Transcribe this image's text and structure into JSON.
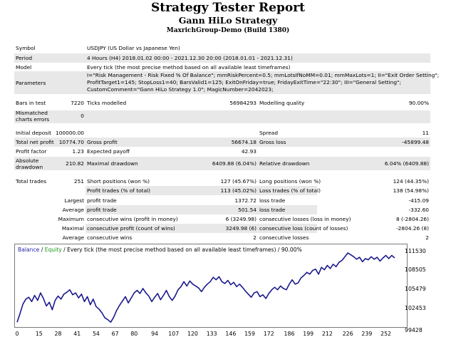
{
  "header": {
    "title": "Strategy Tester Report",
    "strategy": "Gann HiLo Strategy",
    "account": "MaxrichGroup-Demo (Build 1380)"
  },
  "report": {
    "symbol_label": "Symbol",
    "symbol": "USDJPY (US Dollar vs Japanese Yen)",
    "period_label": "Period",
    "period": "4 Hours (H4) 2018.01.02 00:00 - 2021.12.30 20:00 (2018.01.01 - 2021.12.31)",
    "model_label": "Model",
    "model": "Every tick (the most precise method based on all available least timeframes)",
    "parameters_label": "Parameters",
    "parameters_line1": "I=\"Risk Management - Risk Fixed % Of Balance\"; mmRiskPercent=0.5; mmLotsIfNoMM=0.01; mmMaxLots=1; II=\"Exit Order Setting\";",
    "parameters_line2": "ProfitTarget1=145; StopLoss1=40; BarsValid1=125; ExitOnFriday=true; FridayExitTime=\"22:30\"; III=\"General Setting\";",
    "parameters_line3": "CustomComment=\"Gann HiLo Strategy 1.0\"; MagicNumber=2042023;",
    "bars_label": "Bars in test",
    "bars": "7220",
    "ticks_label": "Ticks modelled",
    "ticks": "56984293",
    "quality_label": "Modelling quality",
    "quality": "90.00%",
    "mismatched_label_1": "Mismatched",
    "mismatched_label_2": "charts errors",
    "mismatched": "0",
    "initial_deposit_label": "Initial deposit",
    "initial_deposit": "100000.00",
    "spread_label": "Spread",
    "spread": "11",
    "net_profit_label": "Total net profit",
    "net_profit": "10774.70",
    "gross_profit_label": "Gross profit",
    "gross_profit": "56674.18",
    "gross_loss_label": "Gross loss",
    "gross_loss": "-45899.48",
    "profit_factor_label": "Profit factor",
    "profit_factor": "1.23",
    "expected_payoff_label": "Expected payoff",
    "expected_payoff": "42.93",
    "absolute_dd_label_1": "Absolute",
    "absolute_dd_label_2": "drawdown",
    "absolute_dd": "210.82",
    "maximal_dd_label": "Maximal drawdown",
    "maximal_dd": "6409.88 (6.04%)",
    "relative_dd_label": "Relative drawdown",
    "relative_dd": "6.04% (6409.88)",
    "total_trades_label": "Total trades",
    "total_trades": "251",
    "short_label": "Short positions (won %)",
    "short": "127 (45.67%)",
    "long_label": "Long positions (won %)",
    "long": "124 (44.35%)",
    "profit_trades_label": "Profit trades (% of total)",
    "profit_trades": "113 (45.02%)",
    "loss_trades_label": "Loss trades (% of total)",
    "loss_trades": "138 (54.98%)",
    "largest_label": "Largest",
    "largest_profit_label": "profit trade",
    "largest_profit": "1372.72",
    "largest_loss_label": "loss trade",
    "largest_loss": "-415.09",
    "average_label": "Average",
    "average_profit_label": "profit trade",
    "average_profit": "501.54",
    "average_loss_label": "loss trade",
    "average_loss": "-332.60",
    "maximum_label": "Maximum",
    "max_cons_wins_label": "consecutive wins (profit in money)",
    "max_cons_wins": "6 (3249.98)",
    "max_cons_losses_label": "consecutive losses (loss in money)",
    "max_cons_losses": "8 (-2804.26)",
    "maximal_label": "Maximal",
    "maximal_cons_profit_label": "consecutive profit (count of wins)",
    "maximal_cons_profit": "3249.98 (6)",
    "maximal_cons_loss_label": "consecutive loss (count of losses)",
    "maximal_cons_loss": "-2804.26 (8)",
    "average2_label": "Average",
    "avg_cons_wins_label": "consecutive wins",
    "avg_cons_wins": "2",
    "avg_cons_losses_label": "consecutive losses",
    "avg_cons_losses": "2"
  },
  "chart": {
    "caption_balance": "Balance",
    "caption_sep": " / ",
    "caption_equity": "Equity",
    "caption_rest": " / Every tick (the most precise method based on all available least timeframes) / 90.00%",
    "balance_color": "#1a1a8c",
    "equity_color": "#1a9a1a"
  },
  "chart_data": {
    "type": "line",
    "ylim": [
      99428,
      111530
    ],
    "xlim": [
      0,
      260
    ],
    "yticks": [
      "111530",
      "108505",
      "105479",
      "102453",
      "99428"
    ],
    "xticks": [
      "0",
      "15",
      "28",
      "41",
      "54",
      "67",
      "80",
      "94",
      "107",
      "120",
      "133",
      "146",
      "159",
      "172",
      "186",
      "199",
      "212",
      "226",
      "239",
      "252"
    ],
    "series": [
      {
        "name": "Balance",
        "x": [
          0,
          2,
          4,
          6,
          8,
          10,
          12,
          14,
          16,
          18,
          20,
          22,
          24,
          26,
          28,
          30,
          32,
          34,
          36,
          38,
          40,
          42,
          44,
          46,
          48,
          50,
          52,
          54,
          56,
          58,
          60,
          62,
          64,
          66,
          68,
          70,
          72,
          74,
          76,
          78,
          80,
          82,
          84,
          86,
          88,
          90,
          92,
          94,
          96,
          98,
          100,
          102,
          104,
          106,
          108,
          110,
          112,
          114,
          116,
          118,
          120,
          122,
          124,
          126,
          128,
          130,
          132,
          134,
          136,
          138,
          140,
          142,
          144,
          146,
          148,
          150,
          152,
          154,
          156,
          158,
          160,
          162,
          164,
          166,
          168,
          170,
          172,
          174,
          176,
          178,
          180,
          182,
          184,
          186,
          188,
          190,
          192,
          194,
          196,
          198,
          200,
          202,
          204,
          206,
          208,
          210,
          212,
          214,
          216,
          218,
          220,
          222,
          224,
          226,
          228,
          230,
          232,
          234,
          236,
          238,
          240,
          242,
          244,
          246,
          248,
          250,
          252,
          254,
          256,
          258
        ],
        "values": [
          100210,
          101600,
          103100,
          103900,
          104200,
          103500,
          104500,
          103700,
          104900,
          104000,
          102800,
          103400,
          102200,
          103700,
          104400,
          103900,
          104700,
          105000,
          105400,
          104600,
          104900,
          104100,
          104700,
          103500,
          104300,
          103000,
          103900,
          102700,
          102300,
          101700,
          100900,
          100600,
          100200,
          101000,
          102100,
          102900,
          103600,
          104300,
          103300,
          104100,
          104900,
          105300,
          104800,
          105600,
          104900,
          104400,
          103500,
          104200,
          104800,
          103800,
          104500,
          105300,
          104300,
          103700,
          104400,
          105400,
          105900,
          106700,
          106000,
          106800,
          106300,
          106000,
          105700,
          105100,
          105800,
          106300,
          106700,
          107400,
          107000,
          107500,
          106700,
          106400,
          106900,
          106200,
          106600,
          105900,
          106300,
          105800,
          105200,
          104700,
          104200,
          104900,
          105100,
          104300,
          104600,
          104000,
          104800,
          105400,
          105800,
          105400,
          106000,
          105600,
          105400,
          106300,
          107000,
          106300,
          106500,
          107300,
          107700,
          108200,
          107900,
          108500,
          108700,
          107900,
          109000,
          108600,
          109300,
          108800,
          109500,
          109100,
          109800,
          110100,
          110700,
          111300,
          111000,
          110700,
          110300,
          110600,
          109900,
          110400,
          110200,
          110700,
          110300,
          110600,
          110000,
          110500,
          110900,
          110400,
          110900,
          110500
        ]
      }
    ]
  }
}
